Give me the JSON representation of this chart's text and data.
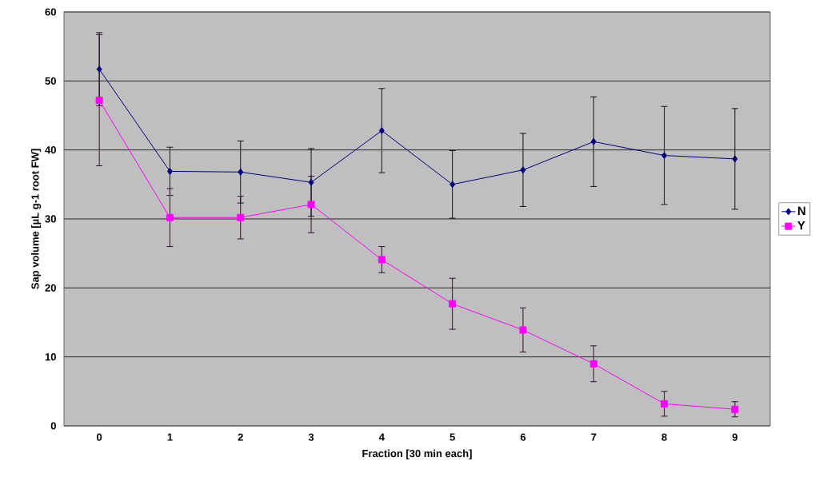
{
  "chart_data": {
    "type": "line",
    "xlabel": "Fraction [30 min each]",
    "ylabel": "Sap volume [µL g-1 root FW]",
    "categories": [
      "0",
      "1",
      "2",
      "3",
      "4",
      "5",
      "6",
      "7",
      "8",
      "9"
    ],
    "series": [
      {
        "name": "N",
        "color": "#000080",
        "marker": "diamond",
        "values": [
          51.7,
          36.9,
          36.8,
          35.3,
          42.8,
          35.0,
          37.1,
          41.2,
          39.2,
          38.7
        ],
        "errors": [
          5.3,
          3.5,
          4.5,
          4.9,
          6.1,
          4.9,
          5.3,
          6.5,
          7.1,
          7.3
        ]
      },
      {
        "name": "Y",
        "color": "#ff00ff",
        "marker": "square",
        "values": [
          47.2,
          30.2,
          30.2,
          32.1,
          24.1,
          17.7,
          13.9,
          9.0,
          3.2,
          2.4
        ],
        "errors": [
          9.5,
          4.2,
          3.1,
          4.1,
          1.9,
          3.7,
          3.2,
          2.6,
          1.8,
          1.1
        ]
      }
    ],
    "ylim": [
      0,
      60
    ],
    "yticks": [
      0,
      10,
      20,
      30,
      40,
      50,
      60
    ],
    "grid": "y",
    "legend": "right",
    "line_style": "solid"
  }
}
